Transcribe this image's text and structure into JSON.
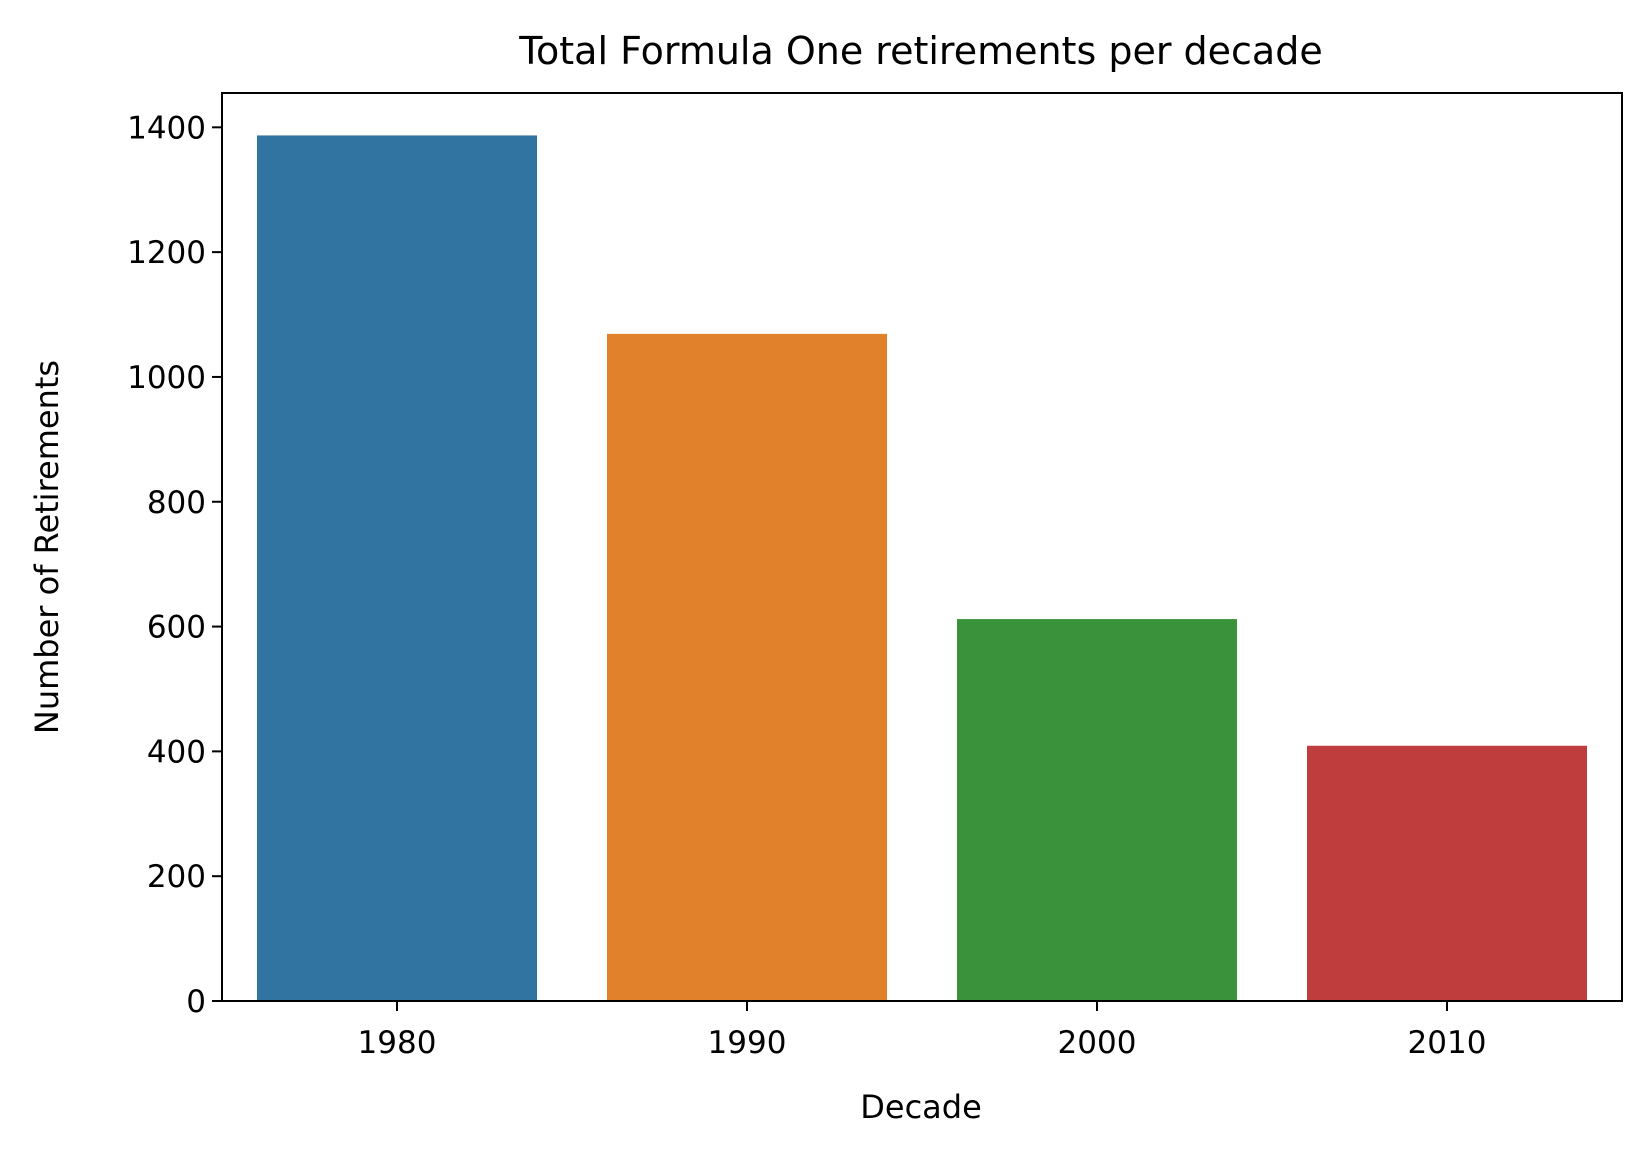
{
  "chart_data": {
    "type": "bar",
    "title": "Total Formula One retirements per decade",
    "xlabel": "Decade",
    "ylabel": "Number of Retirements",
    "categories": [
      "1980",
      "1990",
      "2000",
      "2010"
    ],
    "values": [
      1387,
      1069,
      612,
      409
    ],
    "colors": [
      "#3274a1",
      "#e1812c",
      "#3a923a",
      "#c03d3e"
    ],
    "ylim": [
      0,
      1455
    ],
    "yticks": [
      0,
      200,
      400,
      600,
      800,
      1000,
      1200,
      1400
    ],
    "grid": false,
    "legend": "none"
  }
}
